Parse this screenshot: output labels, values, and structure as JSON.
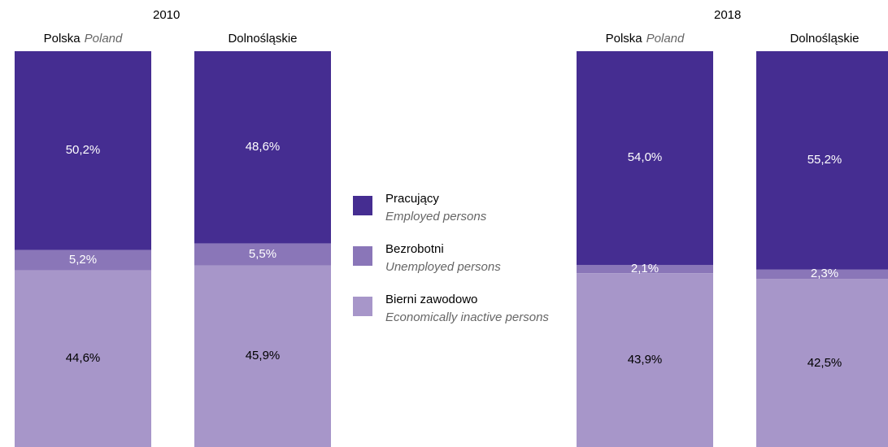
{
  "colors": {
    "employed": "#452D91",
    "unemployed": "#8A76B8",
    "inactive": "#A796C9"
  },
  "legend": [
    {
      "pl": "Pracujący",
      "en": "Employed persons",
      "color": "#452D91"
    },
    {
      "pl": "Bezrobotni",
      "en": "Unemployed persons",
      "color": "#8A76B8"
    },
    {
      "pl": "Bierni zawodowo",
      "en": "Economically inactive persons",
      "color": "#A796C9"
    }
  ],
  "chart_data": {
    "type": "bar",
    "stacked": true,
    "groups": [
      {
        "year": "2010",
        "bars": [
          {
            "label_pl": "Polska",
            "label_en": "Poland",
            "employed": 50.2,
            "unemployed": 5.2,
            "inactive": 44.6,
            "labels": [
              "50,2%",
              "5,2%",
              "44,6%"
            ]
          },
          {
            "label_pl": "Dolnośląskie",
            "label_en": "",
            "employed": 48.6,
            "unemployed": 5.5,
            "inactive": 45.9,
            "labels": [
              "48,6%",
              "5,5%",
              "45,9%"
            ]
          }
        ]
      },
      {
        "year": "2018",
        "bars": [
          {
            "label_pl": "Polska",
            "label_en": "Poland",
            "employed": 54.0,
            "unemployed": 2.1,
            "inactive": 43.9,
            "labels": [
              "54,0%",
              "2,1%",
              "43,9%"
            ]
          },
          {
            "label_pl": "Dolnośląskie",
            "label_en": "",
            "employed": 55.2,
            "unemployed": 2.3,
            "inactive": 42.5,
            "labels": [
              "55,2%",
              "2,3%",
              "42,5%"
            ]
          }
        ]
      }
    ],
    "series": [
      {
        "name": "Pracujący",
        "key": "employed"
      },
      {
        "name": "Bezrobotni",
        "key": "unemployed"
      },
      {
        "name": "Bierni zawodowo",
        "key": "inactive"
      }
    ]
  }
}
